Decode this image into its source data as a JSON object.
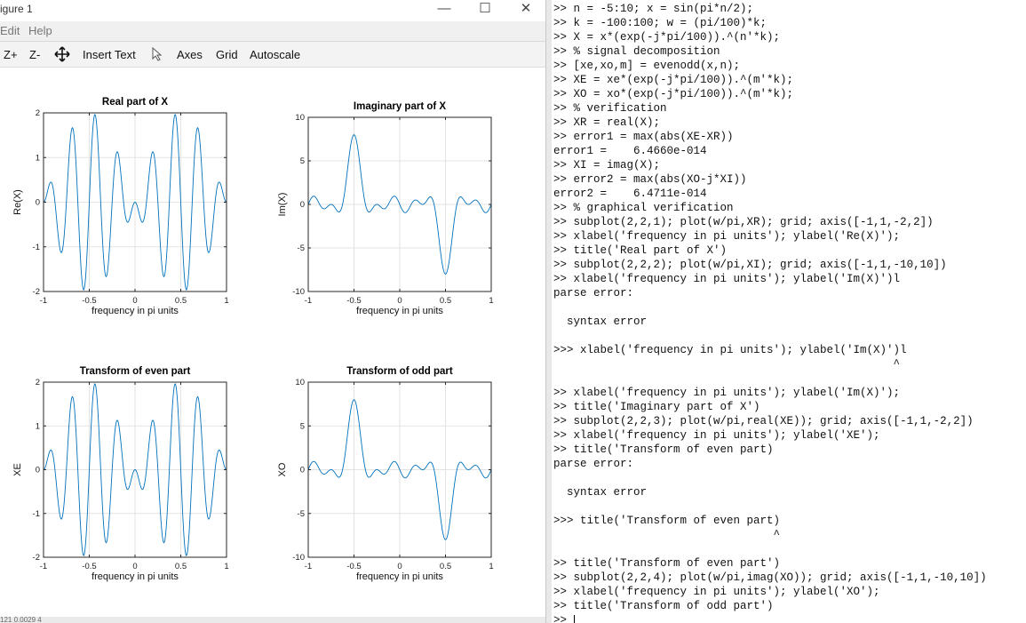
{
  "window": {
    "title": "igure 1"
  },
  "menu": {
    "items": [
      "Edit",
      "Help"
    ]
  },
  "toolbar": {
    "zoom_in": "Z+",
    "zoom_out": "Z-",
    "insert_text": "Insert Text",
    "axes": "Axes",
    "grid": "Grid",
    "autoscale": "Autoscale"
  },
  "status": {
    "text": "121 0.0029 4"
  },
  "plots": [
    {
      "title": "Real part of X",
      "xlabel": "frequency in pi units",
      "ylabel": "Re(X)",
      "xlim": [
        -1,
        1
      ],
      "ylim": [
        -2,
        2
      ],
      "xticks": [
        "-1",
        "-0.5",
        "0",
        "0.5",
        "1"
      ],
      "yticks": [
        "-2",
        "-1",
        "0",
        "1",
        "2"
      ],
      "kind": "real"
    },
    {
      "title": "Imaginary part of X",
      "xlabel": "frequency in pi units",
      "ylabel": "Im(X)",
      "xlim": [
        -1,
        1
      ],
      "ylim": [
        -10,
        10
      ],
      "xticks": [
        "-1",
        "-0.5",
        "0",
        "0.5",
        "1"
      ],
      "yticks": [
        "-10",
        "-5",
        "0",
        "5",
        "10"
      ],
      "kind": "imag"
    },
    {
      "title": "Transform of even part",
      "xlabel": "frequency in pi units",
      "ylabel": "XE",
      "xlim": [
        -1,
        1
      ],
      "ylim": [
        -2,
        2
      ],
      "xticks": [
        "-1",
        "-0.5",
        "0",
        "0.5",
        "1"
      ],
      "yticks": [
        "-2",
        "-1",
        "0",
        "1",
        "2"
      ],
      "kind": "real"
    },
    {
      "title": "Transform of odd part",
      "xlabel": "frequency in pi units",
      "ylabel": "XO",
      "xlim": [
        -1,
        1
      ],
      "ylim": [
        -10,
        10
      ],
      "xticks": [
        "-1",
        "-0.5",
        "0",
        "0.5",
        "1"
      ],
      "yticks": [
        "-10",
        "-5",
        "0",
        "5",
        "10"
      ],
      "kind": "imag"
    }
  ],
  "series_color": "#0072bd",
  "command_window": {
    "lines": [
      ">> n = -5:10; x = sin(pi*n/2);",
      ">> k = -100:100; w = (pi/100)*k;",
      ">> X = x*(exp(-j*pi/100)).^(n'*k);",
      ">> % signal decomposition",
      ">> [xe,xo,m] = evenodd(x,n);",
      ">> XE = xe*(exp(-j*pi/100)).^(m'*k);",
      ">> XO = xo*(exp(-j*pi/100)).^(m'*k);",
      ">> % verification",
      ">> XR = real(X);",
      ">> error1 = max(abs(XE-XR))",
      "error1 =    6.4660e-014",
      ">> XI = imag(X);",
      ">> error2 = max(abs(XO-j*XI))",
      "error2 =    6.4711e-014",
      ">> % graphical verification",
      ">> subplot(2,2,1); plot(w/pi,XR); grid; axis([-1,1,-2,2])",
      ">> xlabel('frequency in pi units'); ylabel('Re(X)');",
      ">> title('Real part of X')",
      ">> subplot(2,2,2); plot(w/pi,XI); grid; axis([-1,1,-10,10])",
      ">> xlabel('frequency in pi units'); ylabel('Im(X)')l",
      "parse error:",
      "",
      "  syntax error",
      "",
      ">>> xlabel('frequency in pi units'); ylabel('Im(X)')l",
      "                                                   ^",
      "",
      ">> xlabel('frequency in pi units'); ylabel('Im(X)');",
      ">> title('Imaginary part of X')",
      ">> subplot(2,2,3); plot(w/pi,real(XE)); grid; axis([-1,1,-2,2])",
      ">> xlabel('frequency in pi units'); ylabel('XE');",
      ">> title('Transform of even part)",
      "parse error:",
      "",
      "  syntax error",
      "",
      ">>> title('Transform of even part)",
      "                                 ^",
      "",
      ">> title('Transform of even part')",
      ">> subplot(2,2,4); plot(w/pi,imag(XO)); grid; axis([-1,1,-10,10])",
      ">> xlabel('frequency in pi units'); ylabel('XO');",
      ">> title('Transform of odd part')",
      ">> "
    ]
  },
  "chart_data": [
    {
      "type": "line",
      "title": "Real part of X",
      "xlabel": "frequency in pi units",
      "ylabel": "Re(X)",
      "xlim": [
        -1,
        1
      ],
      "ylim": [
        -2,
        2
      ],
      "grid": true,
      "x": [
        -1,
        -0.9,
        -0.8,
        -0.7,
        -0.6,
        -0.5,
        -0.4,
        -0.3,
        -0.2,
        -0.1,
        0,
        0.1,
        0.2,
        0.3,
        0.4,
        0.5,
        0.6,
        0.7,
        0.8,
        0.9,
        1
      ],
      "y": [
        0,
        0.4,
        -1.1,
        1.6,
        -1.9,
        2.0,
        -0.8,
        1.0,
        -0.4,
        -0.3,
        0.5,
        -0.4,
        1.1,
        -1.3,
        1.9,
        -1.9,
        1.6,
        -1.1,
        0.4,
        0.45,
        0
      ]
    },
    {
      "type": "line",
      "title": "Imaginary part of X",
      "xlabel": "frequency in pi units",
      "ylabel": "Im(X)",
      "xlim": [
        -1,
        1
      ],
      "ylim": [
        -10,
        10
      ],
      "grid": true,
      "x": [
        -1,
        -0.9,
        -0.8,
        -0.7,
        -0.6,
        -0.5,
        -0.4,
        -0.3,
        -0.2,
        -0.1,
        0,
        0.1,
        0.2,
        0.3,
        0.4,
        0.5,
        0.6,
        0.7,
        0.8,
        0.9,
        1
      ],
      "y": [
        0,
        1,
        -0.6,
        0.5,
        1,
        8,
        0.5,
        -0.5,
        0.6,
        -0.5,
        0.2,
        -0.6,
        0.6,
        0.4,
        -1,
        -8,
        -1,
        0.9,
        0.4,
        -0.8,
        0
      ]
    },
    {
      "type": "line",
      "title": "Transform of even part",
      "xlabel": "frequency in pi units",
      "ylabel": "XE",
      "xlim": [
        -1,
        1
      ],
      "ylim": [
        -2,
        2
      ],
      "grid": true,
      "x": [
        -1,
        -0.9,
        -0.8,
        -0.7,
        -0.6,
        -0.5,
        -0.4,
        -0.3,
        -0.2,
        -0.1,
        0,
        0.1,
        0.2,
        0.3,
        0.4,
        0.5,
        0.6,
        0.7,
        0.8,
        0.9,
        1
      ],
      "y": [
        0,
        0.4,
        -1.1,
        1.6,
        -1.9,
        2.0,
        -0.8,
        1.0,
        -0.4,
        -0.3,
        0.5,
        -0.4,
        1.1,
        -1.3,
        1.9,
        -1.9,
        1.6,
        -1.1,
        0.4,
        0.45,
        0
      ]
    },
    {
      "type": "line",
      "title": "Transform of odd part",
      "xlabel": "frequency in pi units",
      "ylabel": "XO",
      "xlim": [
        -1,
        1
      ],
      "ylim": [
        -10,
        10
      ],
      "grid": true,
      "x": [
        -1,
        -0.9,
        -0.8,
        -0.7,
        -0.6,
        -0.5,
        -0.4,
        -0.3,
        -0.2,
        -0.1,
        0,
        0.1,
        0.2,
        0.3,
        0.4,
        0.5,
        0.6,
        0.7,
        0.8,
        0.9,
        1
      ],
      "y": [
        0,
        1,
        -0.6,
        0.5,
        1,
        8,
        0.5,
        -0.5,
        0.6,
        -0.5,
        0.2,
        -0.6,
        0.6,
        0.4,
        -1,
        -8,
        -1,
        0.9,
        0.4,
        -0.8,
        0
      ]
    }
  ]
}
